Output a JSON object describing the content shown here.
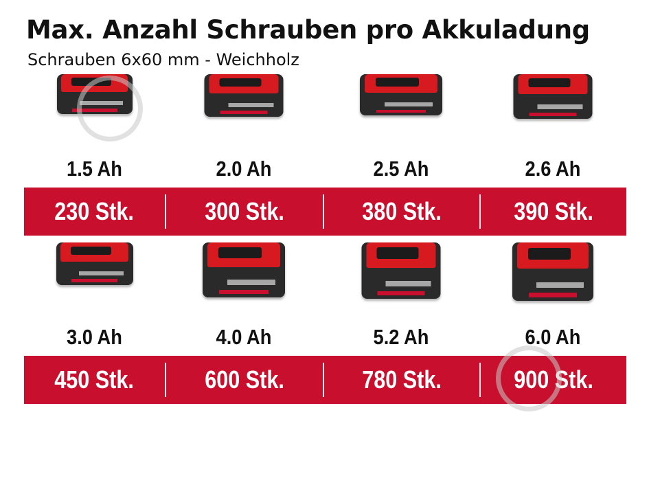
{
  "header": {
    "title": "Max. Anzahl Schrauben pro Akkuladung",
    "subtitle": "Schrauben 6x60 mm - Weichholz"
  },
  "accent_color": "#c8102e",
  "rows": [
    {
      "batteries": [
        {
          "capacity": "1.5 Ah",
          "count": "230 Stk."
        },
        {
          "capacity": "2.0 Ah",
          "count": "300 Stk."
        },
        {
          "capacity": "2.5 Ah",
          "count": "380 Stk."
        },
        {
          "capacity": "2.6 Ah",
          "count": "390 Stk."
        }
      ]
    },
    {
      "batteries": [
        {
          "capacity": "3.0 Ah",
          "count": "450 Stk."
        },
        {
          "capacity": "4.0 Ah",
          "count": "600 Stk."
        },
        {
          "capacity": "5.2 Ah",
          "count": "780 Stk."
        },
        {
          "capacity": "6.0 Ah",
          "count": "900 Stk."
        }
      ]
    }
  ]
}
